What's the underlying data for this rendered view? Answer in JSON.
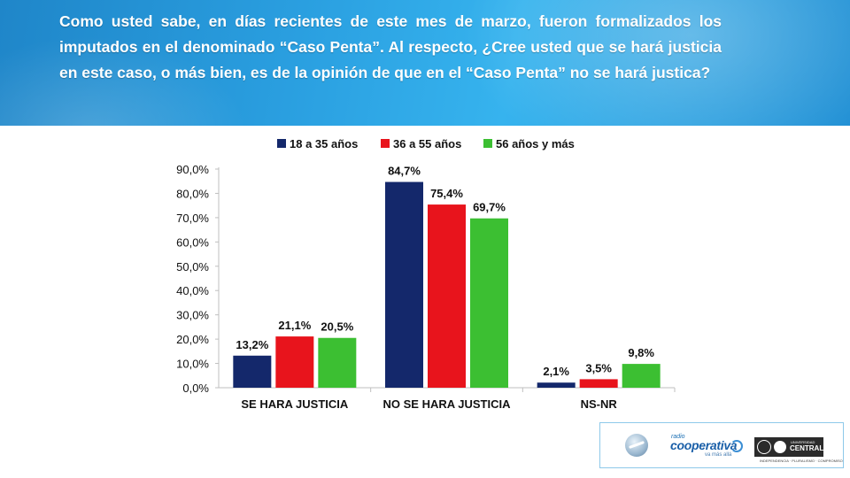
{
  "question": "Como usted sabe, en días recientes de este mes de marzo, fueron formalizados los imputados en el denominado “Caso Penta”. Al respecto, ¿Cree usted que se  hará justicia en este caso, o más bien, es de la opinión de que en el “Caso Penta” no se hará justica?",
  "chart_data": {
    "type": "bar",
    "categories": [
      "SE HARA JUSTICIA",
      "NO SE HARA JUSTICIA",
      "NS-NR"
    ],
    "series": [
      {
        "name": "18 a 35 años",
        "color": "#14286b",
        "values": [
          13.2,
          84.7,
          2.1
        ],
        "labels": [
          "13,2%",
          "84,7%",
          "2,1%"
        ]
      },
      {
        "name": "36 a 55 años",
        "color": "#e8141c",
        "values": [
          21.1,
          75.4,
          3.5
        ],
        "labels": [
          "21,1%",
          "75,4%",
          "3,5%"
        ]
      },
      {
        "name": "56 años y más",
        "color": "#3cbf32",
        "values": [
          20.5,
          69.7,
          9.8
        ],
        "labels": [
          "20,5%",
          "69,7%",
          "9,8%"
        ]
      }
    ],
    "ylim": [
      0,
      90
    ],
    "yticks": [
      0,
      10,
      20,
      30,
      40,
      50,
      60,
      70,
      80,
      90
    ],
    "ytick_labels": [
      "0,0%",
      "10,0%",
      "20,0%",
      "30,0%",
      "40,0%",
      "50,0%",
      "60,0%",
      "70,0%",
      "80,0%",
      "90,0%"
    ],
    "legend_position": "top",
    "grid": false
  },
  "logos": {
    "cooperativa_small": "radio",
    "cooperativa_name": "cooperativa",
    "cooperativa_tagline": "va más allá",
    "ucentral_top": "UNIVERSIDAD",
    "ucentral_name": "CENTRAL",
    "ucentral_motto": "INDEPENDENCIA · PLURALISMO · COMPROMISO"
  }
}
